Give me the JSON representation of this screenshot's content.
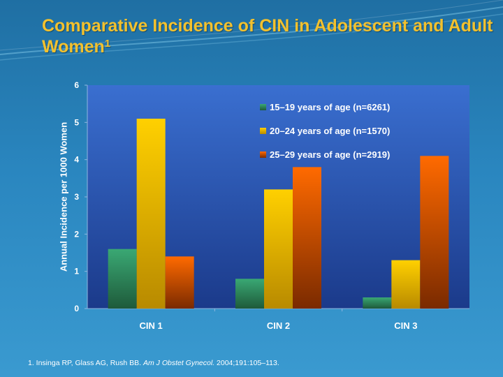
{
  "slide": {
    "title_main": "Comparative Incidence of CIN in Adolescent and Adult Women",
    "title_sup": "1",
    "footnote_prefix": "1. Insinga RP, Glass AG, Rush BB. ",
    "footnote_journal": "Am J Obstet Gynecol.",
    "footnote_suffix": " 2004;191:105–113."
  },
  "chart_data": {
    "type": "bar",
    "title": "Comparative Incidence of CIN in Adolescent and Adult Women",
    "xlabel": "",
    "ylabel": "Annual Incidence per 1000 Women",
    "ylim": [
      0,
      6
    ],
    "yticks": [
      "0",
      "1",
      "2",
      "3",
      "4",
      "5",
      "6"
    ],
    "categories": [
      "CIN 1",
      "CIN 2",
      "CIN 3"
    ],
    "legend_position": "top-right",
    "series": [
      {
        "name": "15–19 years of age (n=6261)",
        "values": [
          1.6,
          0.8,
          0.3
        ],
        "color_top": "#3aa874",
        "color_bottom": "#1e5a3a"
      },
      {
        "name": "20–24 years of age (n=1570)",
        "values": [
          5.1,
          3.2,
          1.3
        ],
        "color_top": "#ffd000",
        "color_bottom": "#b88a00"
      },
      {
        "name": "25–29 years of age (n=2919)",
        "values": [
          1.4,
          3.8,
          4.1
        ],
        "color_top": "#ff6a00",
        "color_bottom": "#7a2a00"
      }
    ]
  },
  "colors": {
    "title": "#f2c12e",
    "plot_top": "#3a6fd0",
    "plot_bottom": "#1b3a8a"
  }
}
